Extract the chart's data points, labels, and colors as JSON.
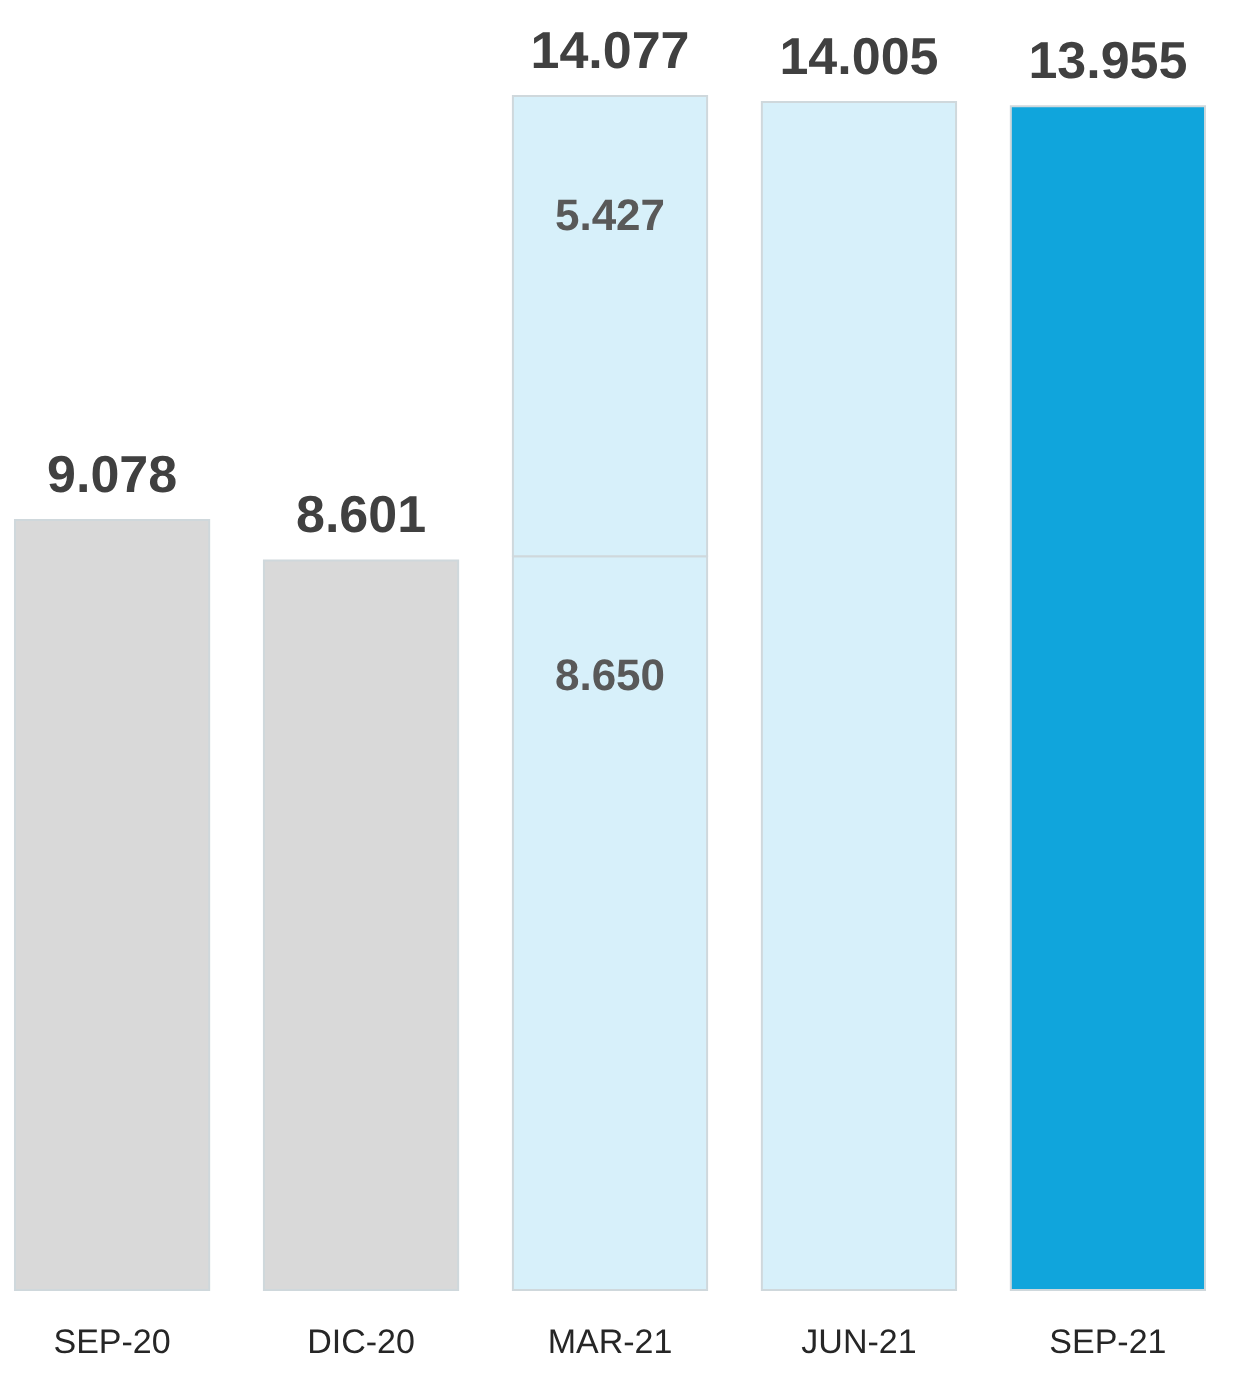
{
  "chart_data": {
    "type": "bar",
    "stacked": true,
    "categories": [
      "SEP-20",
      "DIC-20",
      "MAR-21",
      "JUN-21",
      "SEP-21"
    ],
    "series": [
      {
        "colors": [
          "#d9d9d9",
          "#d9d9d9",
          "#d7f0fa",
          "#d7f0fa",
          "#10a5dc"
        ],
        "values": [
          9.078,
          8.601,
          8.65,
          14.005,
          13.955
        ],
        "value_labels": [
          null,
          null,
          "8.650",
          null,
          null
        ]
      },
      {
        "colors": [
          null,
          null,
          "#d7f0fa",
          null,
          null
        ],
        "values": [
          null,
          null,
          5.427,
          null,
          null
        ],
        "value_labels": [
          null,
          null,
          "5.427",
          null,
          null
        ]
      }
    ],
    "totals": [
      "9.078",
      "8.601",
      "14.077",
      "14.005",
      "13.955"
    ]
  }
}
